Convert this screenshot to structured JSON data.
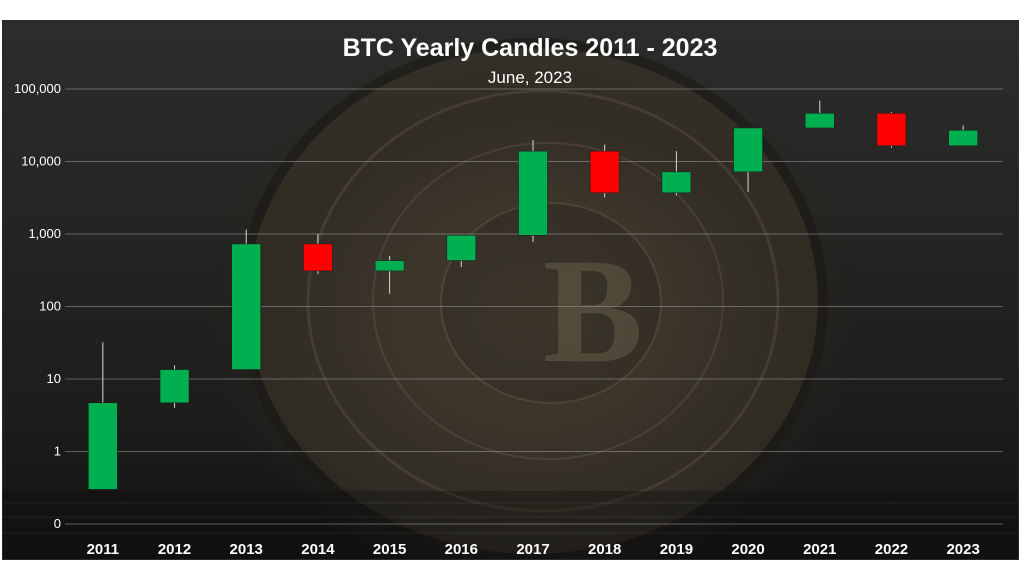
{
  "chart_data": {
    "type": "candlestick",
    "title": "BTC Yearly Candles 2011 - 2023",
    "subtitle": "June, 2023",
    "y_scale": "log",
    "ylim": [
      0.1,
      100000
    ],
    "y_ticks": [
      {
        "value": 0.1,
        "label": "0"
      },
      {
        "value": 1,
        "label": "1"
      },
      {
        "value": 10,
        "label": "10"
      },
      {
        "value": 100,
        "label": "100"
      },
      {
        "value": 1000,
        "label": "1,000"
      },
      {
        "value": 10000,
        "label": "10,000"
      },
      {
        "value": 100000,
        "label": "100,000"
      }
    ],
    "grid": true,
    "up_color": "#00b050",
    "down_color": "#ff0000",
    "categories": [
      "2011",
      "2012",
      "2013",
      "2014",
      "2015",
      "2016",
      "2017",
      "2018",
      "2019",
      "2020",
      "2021",
      "2022",
      "2023"
    ],
    "candles": [
      {
        "year": "2011",
        "open": 0.3,
        "close": 4.7,
        "high": 32,
        "low": 0.3
      },
      {
        "year": "2012",
        "open": 4.7,
        "close": 13.5,
        "high": 15.4,
        "low": 4
      },
      {
        "year": "2013",
        "open": 13.5,
        "close": 730,
        "high": 1150,
        "low": 13.5
      },
      {
        "year": "2014",
        "open": 730,
        "close": 310,
        "high": 1000,
        "low": 280
      },
      {
        "year": "2015",
        "open": 310,
        "close": 430,
        "high": 500,
        "low": 150
      },
      {
        "year": "2016",
        "open": 430,
        "close": 960,
        "high": 980,
        "low": 350
      },
      {
        "year": "2017",
        "open": 960,
        "close": 13900,
        "high": 19800,
        "low": 780
      },
      {
        "year": "2018",
        "open": 13900,
        "close": 3700,
        "high": 17200,
        "low": 3200
      },
      {
        "year": "2019",
        "open": 3700,
        "close": 7200,
        "high": 13900,
        "low": 3400
      },
      {
        "year": "2020",
        "open": 7200,
        "close": 29000,
        "high": 29300,
        "low": 3800
      },
      {
        "year": "2021",
        "open": 29000,
        "close": 46300,
        "high": 69000,
        "low": 28800
      },
      {
        "year": "2022",
        "open": 46300,
        "close": 16500,
        "high": 48200,
        "low": 15500
      },
      {
        "year": "2023",
        "open": 16500,
        "close": 27000,
        "high": 31400,
        "low": 16500
      }
    ]
  }
}
